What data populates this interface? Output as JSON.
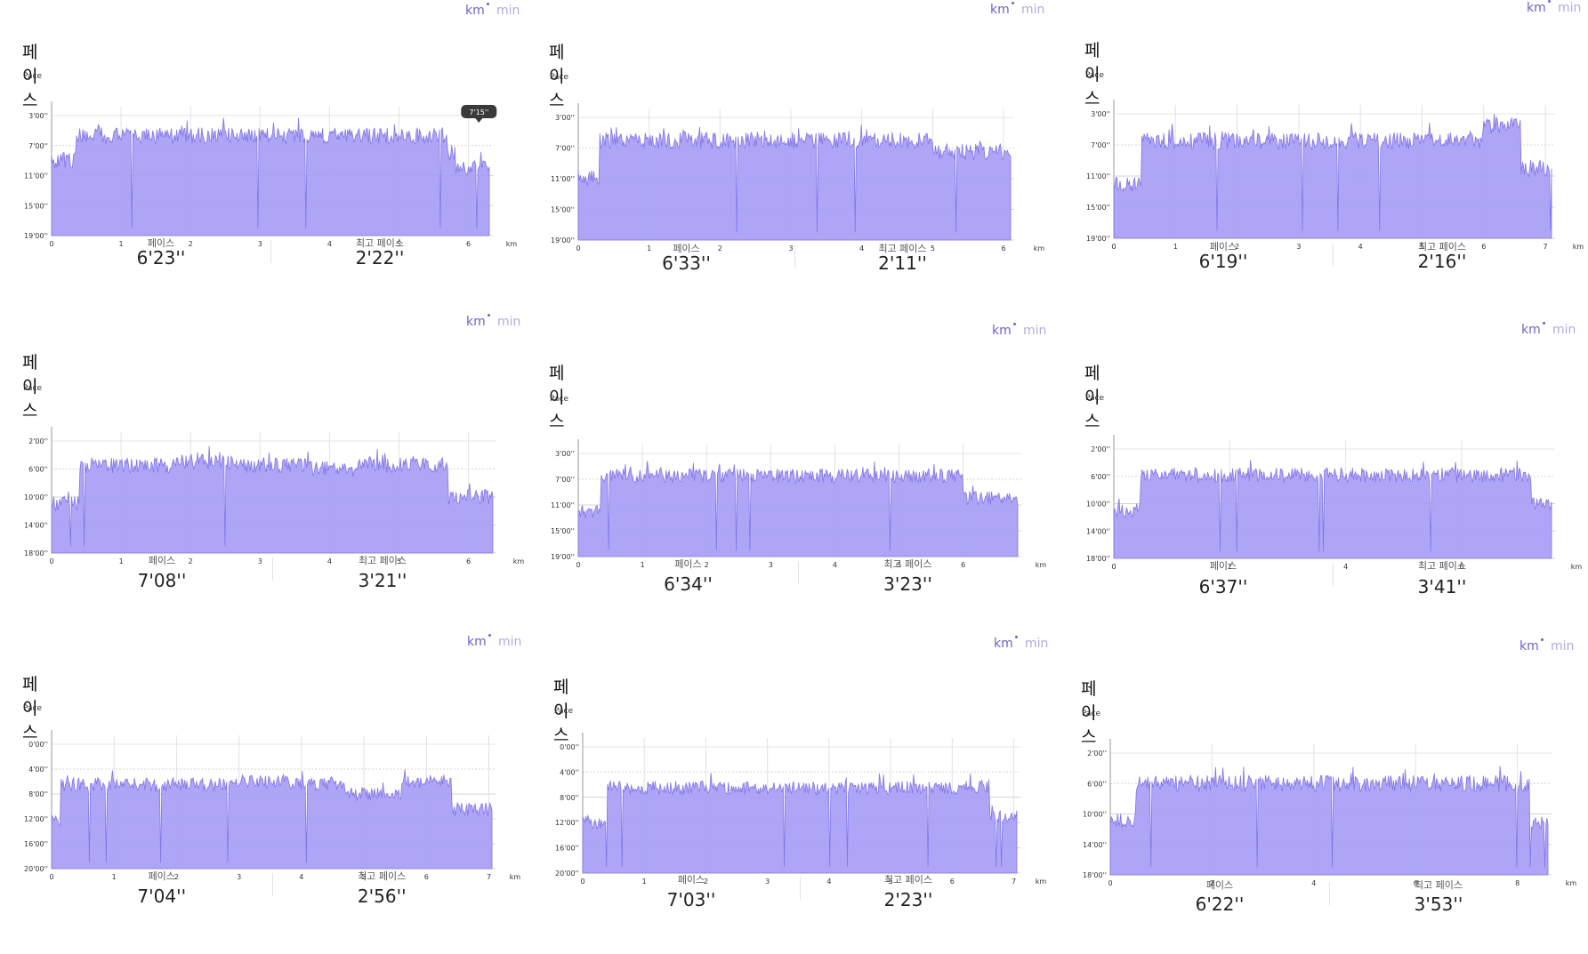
{
  "accent_color": "#6c63c9",
  "fill_color": "#a79df5",
  "line_color": "#8276e6",
  "panels": [
    {
      "title": "페이스",
      "toggle": {
        "unit_a": "km",
        "unit_b": "min"
      },
      "chart_data": {
        "type": "area",
        "ylabel": "Pace",
        "xlabel": "km",
        "y_ticks": [
          "3'00''",
          "7'00''",
          "11'00''",
          "15'00''",
          "19'00''"
        ],
        "x_ticks": [
          "0",
          "1",
          "2",
          "3",
          "4",
          "5",
          "6"
        ],
        "ylim_minutes": [
          3,
          19
        ],
        "x_max": 6.3,
        "inverted_y": true,
        "segments": [
          [
            0,
            0.35,
            9
          ],
          [
            0.35,
            5.7,
            5.7
          ],
          [
            5.7,
            5.82,
            8
          ],
          [
            5.82,
            6.25,
            10
          ]
        ],
        "tooltip": "7'15''",
        "tooltip_x": 6.15
      },
      "stats": {
        "avg_label": "페이스",
        "avg_value": "6'23''",
        "best_label": "최고 페이스",
        "best_value": "2'22''"
      }
    },
    {
      "title": "페이스",
      "toggle": {
        "unit_a": "km",
        "unit_b": "min"
      },
      "chart_data": {
        "type": "area",
        "ylabel": "Pace",
        "xlabel": "km",
        "y_ticks": [
          "3'00''",
          "7'00''",
          "11'00''",
          "15'00''",
          "19'00''"
        ],
        "x_ticks": [
          "0",
          "1",
          "2",
          "3",
          "4",
          "5",
          "6"
        ],
        "ylim_minutes": [
          3,
          19
        ],
        "x_max": 6.1,
        "inverted_y": true,
        "segments": [
          [
            0,
            0.3,
            11
          ],
          [
            0.3,
            5,
            6
          ],
          [
            5,
            6.05,
            7.5
          ]
        ]
      },
      "stats": {
        "avg_label": "페이스",
        "avg_value": "6'33''",
        "best_label": "최고 페이스",
        "best_value": "2'11''"
      }
    },
    {
      "title": "페이스",
      "toggle": {
        "unit_a": "km",
        "unit_b": "min"
      },
      "chart_data": {
        "type": "area",
        "ylabel": "Pace",
        "xlabel": "km",
        "y_ticks": [
          "3'00''",
          "7'00''",
          "11'00''",
          "15'00''",
          "19'00''"
        ],
        "x_ticks": [
          "0",
          "1",
          "2",
          "3",
          "4",
          "5",
          "6",
          "7"
        ],
        "ylim_minutes": [
          3,
          19
        ],
        "x_max": 7.1,
        "inverted_y": true,
        "segments": [
          [
            0,
            0.45,
            12
          ],
          [
            0.45,
            6,
            6.5
          ],
          [
            6,
            6.6,
            4.5
          ],
          [
            6.6,
            7.1,
            10
          ]
        ]
      },
      "stats": {
        "avg_label": "페이스",
        "avg_value": "6'19''",
        "best_label": "최고 페이스",
        "best_value": "2'16''"
      }
    },
    {
      "title": "페이스",
      "toggle": {
        "unit_a": "km",
        "unit_b": "min"
      },
      "chart_data": {
        "type": "area",
        "ylabel": "Pace",
        "xlabel": "km",
        "y_ticks": [
          "2'00''",
          "6'00''",
          "10'00''",
          "14'00''",
          "18'00''"
        ],
        "x_ticks": [
          "0",
          "1",
          "2",
          "3",
          "4",
          "5",
          "6"
        ],
        "ylim_minutes": [
          2,
          18
        ],
        "x_max": 6.35,
        "inverted_y": true,
        "segments": [
          [
            0,
            0.4,
            11
          ],
          [
            0.4,
            1.8,
            5.5
          ],
          [
            1.8,
            2.7,
            5
          ],
          [
            2.7,
            3.7,
            5.5
          ],
          [
            3.7,
            4.4,
            6
          ],
          [
            4.4,
            5.7,
            5.5
          ],
          [
            5.7,
            6.35,
            10
          ]
        ]
      },
      "stats": {
        "avg_label": "페이스",
        "avg_value": "7'08''",
        "best_label": "최고 페이스",
        "best_value": "3'21''"
      }
    },
    {
      "title": "페이스",
      "toggle": {
        "unit_a": "km",
        "unit_b": "min"
      },
      "chart_data": {
        "type": "area",
        "ylabel": "Pace",
        "xlabel": "km",
        "y_ticks": [
          "3'00''",
          "7'00''",
          "11'00''",
          "15'00''",
          "19'00''"
        ],
        "x_ticks": [
          "0",
          "1",
          "2",
          "3",
          "4",
          "5",
          "6"
        ],
        "ylim_minutes": [
          3,
          19
        ],
        "x_max": 6.85,
        "inverted_y": true,
        "segments": [
          [
            0,
            0.35,
            12
          ],
          [
            0.35,
            6,
            6.5
          ],
          [
            6,
            6.85,
            10
          ]
        ]
      },
      "stats": {
        "avg_label": "페이스",
        "avg_value": "6'34''",
        "best_label": "최고 페이스",
        "best_value": "3'23''"
      }
    },
    {
      "title": "페이스",
      "toggle": {
        "unit_a": "km",
        "unit_b": "min"
      },
      "chart_data": {
        "type": "area",
        "ylabel": "Pace",
        "xlabel": "km",
        "y_ticks": [
          "2'00''",
          "6'00''",
          "10'00''",
          "14'00''",
          "18'00''"
        ],
        "x_ticks": [
          "0",
          "2",
          "4",
          "6"
        ],
        "ylim_minutes": [
          2,
          18
        ],
        "x_max": 7.55,
        "inverted_y": true,
        "segments": [
          [
            0,
            0.45,
            11
          ],
          [
            0.45,
            7.2,
            5.8
          ],
          [
            7.2,
            7.55,
            10
          ]
        ]
      },
      "stats": {
        "avg_label": "페이스",
        "avg_value": "6'37''",
        "best_label": "최고 페이스",
        "best_value": "3'41''"
      }
    },
    {
      "title": "페이스",
      "toggle": {
        "unit_a": "km",
        "unit_b": "min"
      },
      "chart_data": {
        "type": "area",
        "ylabel": "Pace",
        "xlabel": "km",
        "y_ticks": [
          "0'00''",
          "4'00''",
          "8'00''",
          "12'00''",
          "16'00''",
          "20'00''"
        ],
        "x_ticks": [
          "0",
          "1",
          "2",
          "3",
          "4",
          "5",
          "6",
          "7"
        ],
        "ylim_minutes": [
          0,
          20
        ],
        "x_max": 7.05,
        "inverted_y": true,
        "segments": [
          [
            0,
            0.15,
            12
          ],
          [
            0.15,
            1.9,
            6.5
          ],
          [
            1.9,
            2.8,
            6.5
          ],
          [
            2.8,
            3.8,
            6
          ],
          [
            3.8,
            4.7,
            6.5
          ],
          [
            4.7,
            5.6,
            8
          ],
          [
            5.6,
            6.4,
            6
          ],
          [
            6.4,
            7.05,
            10.5
          ]
        ]
      },
      "stats": {
        "avg_label": "페이스",
        "avg_value": "7'04''",
        "best_label": "최고 페이스",
        "best_value": "2'56''"
      }
    },
    {
      "title": "페이스",
      "toggle": {
        "unit_a": "km",
        "unit_b": "min"
      },
      "chart_data": {
        "type": "area",
        "ylabel": "Pace",
        "xlabel": "km",
        "y_ticks": [
          "0'00''",
          "4'00''",
          "8'00''",
          "12'00''",
          "16'00''",
          "20'00''"
        ],
        "x_ticks": [
          "0",
          "1",
          "2",
          "3",
          "4",
          "5",
          "6",
          "7"
        ],
        "ylim_minutes": [
          0,
          20
        ],
        "x_max": 7.05,
        "inverted_y": true,
        "segments": [
          [
            0,
            0.4,
            12
          ],
          [
            0.4,
            5.5,
            6.5
          ],
          [
            5.5,
            6.6,
            6.5
          ],
          [
            6.6,
            7.05,
            11
          ]
        ]
      },
      "stats": {
        "avg_label": "페이스",
        "avg_value": "7'03''",
        "best_label": "최고 페이스",
        "best_value": "2'23''"
      }
    },
    {
      "title": "페이스",
      "toggle": {
        "unit_a": "km",
        "unit_b": "min"
      },
      "chart_data": {
        "type": "area",
        "ylabel": "Pace",
        "xlabel": "km",
        "y_ticks": [
          "2'00''",
          "6'00''",
          "10'00''",
          "14'00''",
          "18'00''"
        ],
        "x_ticks": [
          "0",
          "2",
          "4",
          "6",
          "8"
        ],
        "ylim_minutes": [
          2,
          18
        ],
        "x_max": 8.6,
        "inverted_y": true,
        "segments": [
          [
            0,
            0.5,
            11
          ],
          [
            0.5,
            8.25,
            6
          ],
          [
            8.25,
            8.6,
            11
          ]
        ]
      },
      "stats": {
        "avg_label": "페이스",
        "avg_value": "6'22''",
        "best_label": "최고 페이스",
        "best_value": "3'53''"
      }
    }
  ]
}
